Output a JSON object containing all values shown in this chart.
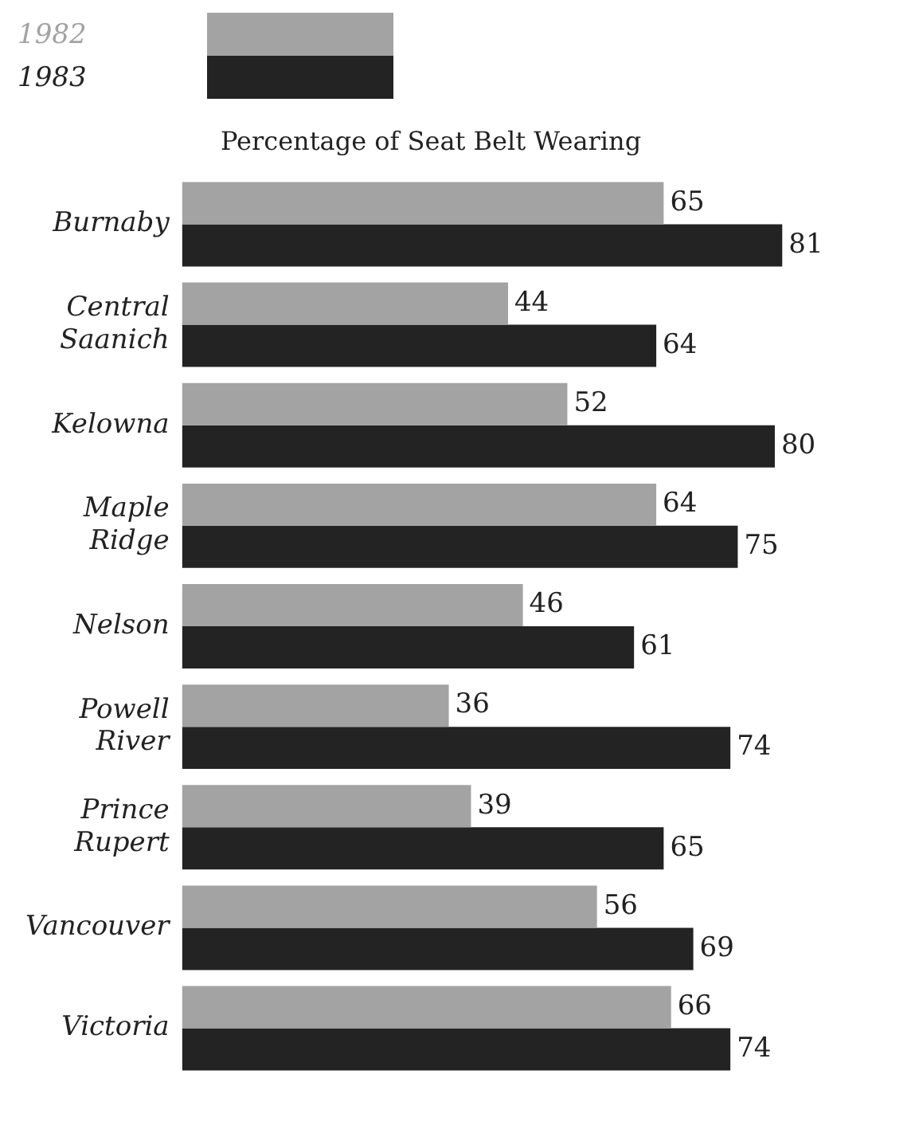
{
  "chart_data": {
    "type": "bar",
    "orientation": "horizontal",
    "title": "Percentage of Seat Belt Wearing",
    "categories": [
      "Burnaby",
      "Central Saanich",
      "Kelowna",
      "Maple Ridge",
      "Nelson",
      "Powell River",
      "Prince Rupert",
      "Vancouver",
      "Victoria"
    ],
    "series": [
      {
        "name": "1982",
        "color": "#a3a3a3",
        "values": [
          65,
          44,
          52,
          64,
          46,
          36,
          39,
          56,
          66
        ]
      },
      {
        "name": "1983",
        "color": "#232323",
        "values": [
          81,
          64,
          80,
          75,
          61,
          74,
          65,
          69,
          74
        ]
      }
    ],
    "data_labels": true,
    "legend": "top left"
  }
}
